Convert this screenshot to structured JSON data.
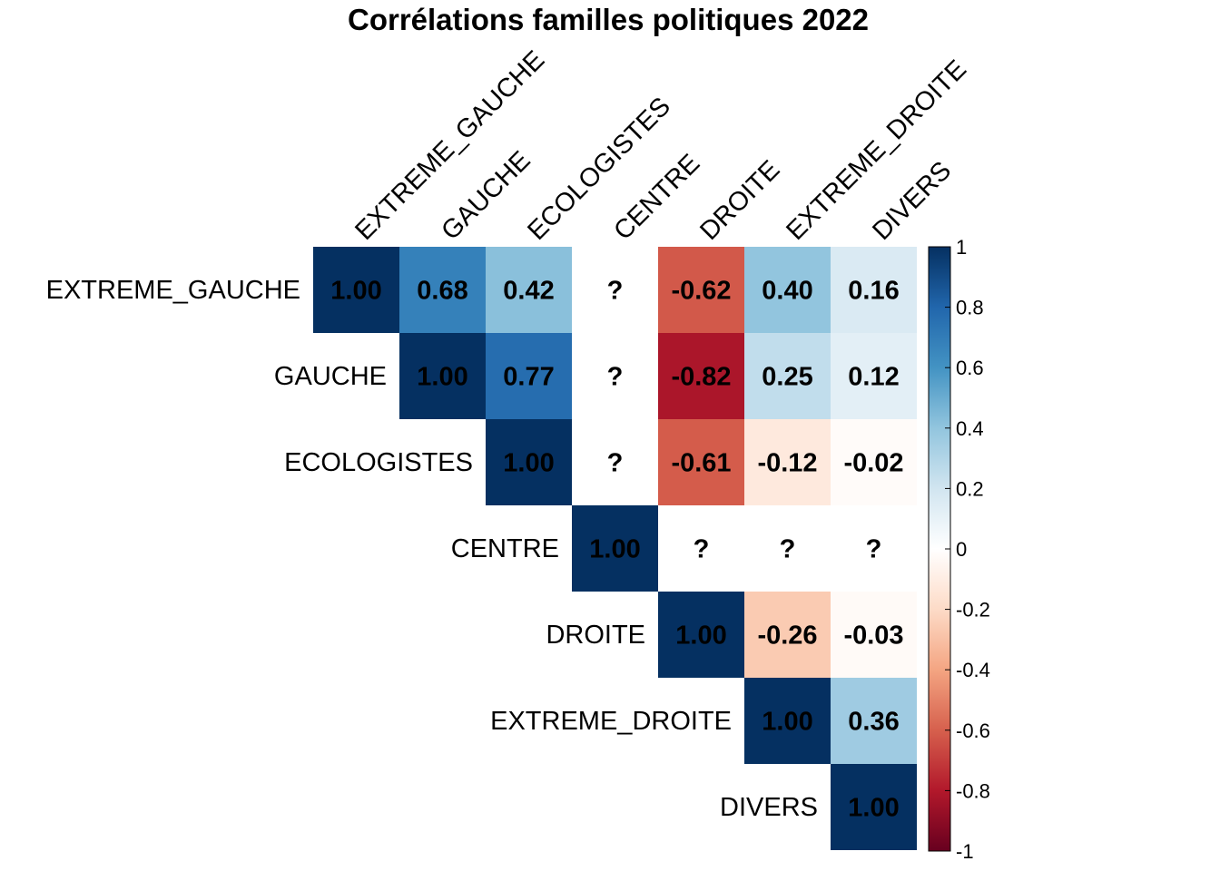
{
  "chart_data": {
    "type": "heatmap",
    "title": "Corrélations familles politiques 2022",
    "variables": [
      "EXTREME_GAUCHE",
      "GAUCHE",
      "ECOLOGISTES",
      "CENTRE",
      "DROITE",
      "EXTREME_DROITE",
      "DIVERS"
    ],
    "layout": "upper-triangle",
    "missing_label": "?",
    "matrix": [
      [
        "1.00",
        "0.68",
        "0.42",
        "?",
        "-0.62",
        "0.40",
        "0.16"
      ],
      [
        null,
        "1.00",
        "0.77",
        "?",
        "-0.82",
        "0.25",
        "0.12"
      ],
      [
        null,
        null,
        "1.00",
        "?",
        "-0.61",
        "-0.12",
        "-0.02"
      ],
      [
        null,
        null,
        null,
        "1.00",
        "?",
        "?",
        "?"
      ],
      [
        null,
        null,
        null,
        null,
        "1.00",
        "-0.26",
        "-0.03"
      ],
      [
        null,
        null,
        null,
        null,
        null,
        "1.00",
        "0.36"
      ],
      [
        null,
        null,
        null,
        null,
        null,
        null,
        "1.00"
      ]
    ],
    "color_scale": {
      "range": [
        -1,
        1
      ],
      "ticks": [
        "1",
        "0.8",
        "0.6",
        "0.4",
        "0.2",
        "0",
        "-0.2",
        "-0.4",
        "-0.6",
        "-0.8",
        "-1"
      ],
      "palette": [
        "#67001F",
        "#B2182B",
        "#D6604D",
        "#F4A582",
        "#FDDBC7",
        "#FFFFFF",
        "#D1E5F0",
        "#92C5DE",
        "#4393C3",
        "#2166AC",
        "#053061"
      ]
    }
  }
}
